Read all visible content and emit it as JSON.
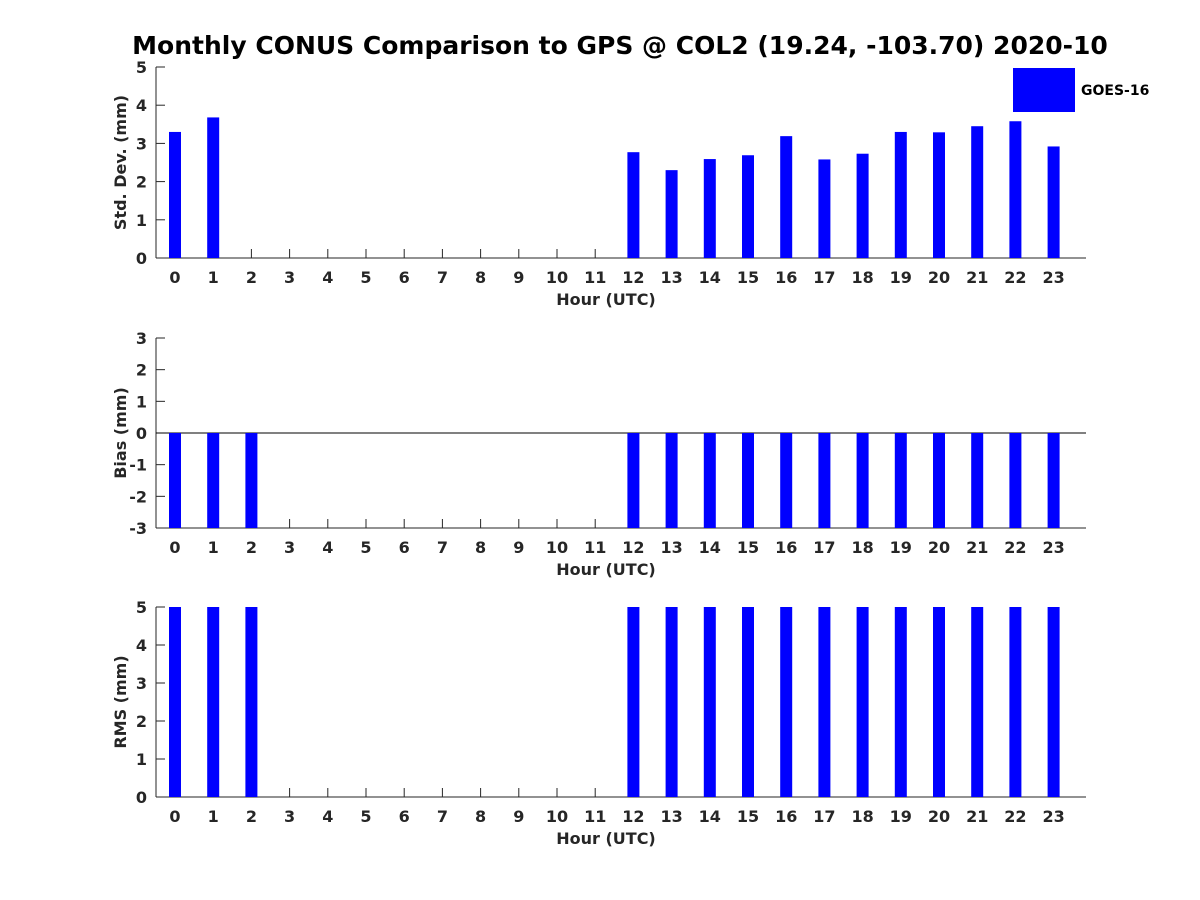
{
  "title": "Monthly CONUS Comparison to GPS @ COL2 (19.24, -103.70) 2020-10",
  "legend": {
    "label": "GOES-16",
    "color": "#0000ff"
  },
  "chart_data": [
    {
      "type": "bar",
      "xlabel": "Hour (UTC)",
      "ylabel": "Std. Dev. (mm)",
      "ylim": [
        0,
        5
      ],
      "yticks": [
        0,
        1,
        2,
        3,
        4,
        5
      ],
      "categories": [
        "0",
        "1",
        "2",
        "3",
        "4",
        "5",
        "6",
        "7",
        "8",
        "9",
        "10",
        "11",
        "12",
        "13",
        "14",
        "15",
        "16",
        "17",
        "18",
        "19",
        "20",
        "21",
        "22",
        "23"
      ],
      "series": [
        {
          "name": "GOES-16",
          "values": [
            3.3,
            3.68,
            null,
            null,
            null,
            null,
            null,
            null,
            null,
            null,
            null,
            null,
            2.77,
            2.3,
            2.59,
            2.69,
            3.19,
            2.58,
            2.73,
            3.3,
            3.29,
            3.45,
            3.58,
            2.92
          ]
        }
      ]
    },
    {
      "type": "bar",
      "xlabel": "Hour (UTC)",
      "ylabel": "Bias (mm)",
      "ylim": [
        -3,
        3
      ],
      "yticks": [
        -3,
        -2,
        -1,
        0,
        1,
        2,
        3
      ],
      "zero_line": true,
      "categories": [
        "0",
        "1",
        "2",
        "3",
        "4",
        "5",
        "6",
        "7",
        "8",
        "9",
        "10",
        "11",
        "12",
        "13",
        "14",
        "15",
        "16",
        "17",
        "18",
        "19",
        "20",
        "21",
        "22",
        "23"
      ],
      "series": [
        {
          "name": "GOES-16",
          "values": [
            -3,
            -3,
            -3,
            null,
            null,
            null,
            null,
            null,
            null,
            null,
            null,
            null,
            -3,
            -3,
            -3,
            -3,
            -3,
            -3,
            -3,
            -3,
            -3,
            -3,
            -3,
            -3
          ]
        }
      ]
    },
    {
      "type": "bar",
      "xlabel": "Hour (UTC)",
      "ylabel": "RMS (mm)",
      "ylim": [
        0,
        5
      ],
      "yticks": [
        0,
        1,
        2,
        3,
        4,
        5
      ],
      "categories": [
        "0",
        "1",
        "2",
        "3",
        "4",
        "5",
        "6",
        "7",
        "8",
        "9",
        "10",
        "11",
        "12",
        "13",
        "14",
        "15",
        "16",
        "17",
        "18",
        "19",
        "20",
        "21",
        "22",
        "23"
      ],
      "series": [
        {
          "name": "GOES-16",
          "values": [
            5,
            5,
            5,
            null,
            null,
            null,
            null,
            null,
            null,
            null,
            null,
            null,
            5,
            5,
            5,
            5,
            5,
            5,
            5,
            5,
            5,
            5,
            5,
            5
          ]
        }
      ]
    }
  ]
}
